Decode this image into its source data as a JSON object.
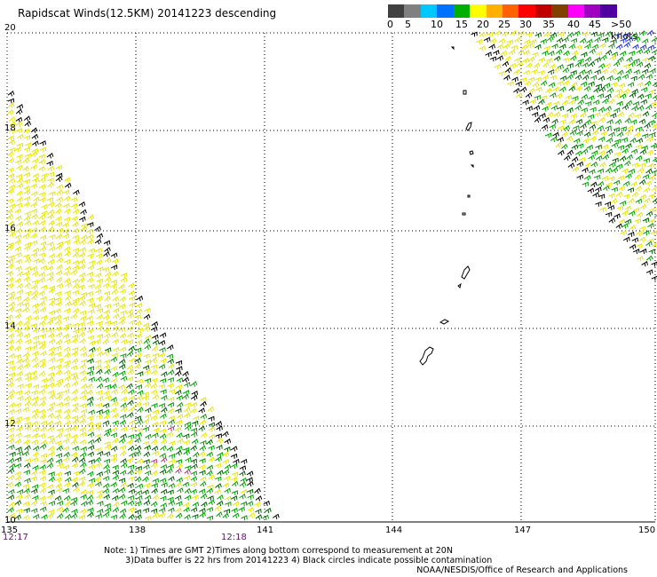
{
  "title": "Rapidscat Winds(12.5KM) 20141223 descending",
  "legend": {
    "labels": [
      "0",
      "5",
      "10",
      "15",
      "20",
      "25",
      "30",
      "35",
      "40",
      "45",
      ">50 knots"
    ],
    "colors": [
      "#404040",
      "#808080",
      "#00c8ff",
      "#0070ff",
      "#00b000",
      "#ffff00",
      "#ffb000",
      "#ff6000",
      "#ff0000",
      "#c00000",
      "#804000",
      "#ff00ff",
      "#a000c0",
      "#5000a0"
    ]
  },
  "axes": {
    "lat_labels": [
      "20",
      "18",
      "16",
      "14",
      "12",
      "10"
    ],
    "lon_labels": [
      "135",
      "138",
      "141",
      "144",
      "147",
      "150"
    ]
  },
  "times": [
    "12:17",
    "12:18"
  ],
  "notes": "Note: 1) Times are GMT 2)Times along bottom correspond to measurement at 20N\n        3)Data buffer is 22 hrs from 20141223 4) Black circles indicate possible contamination",
  "credit": "NOAA/NESDIS/Office of Research and Applications"
}
